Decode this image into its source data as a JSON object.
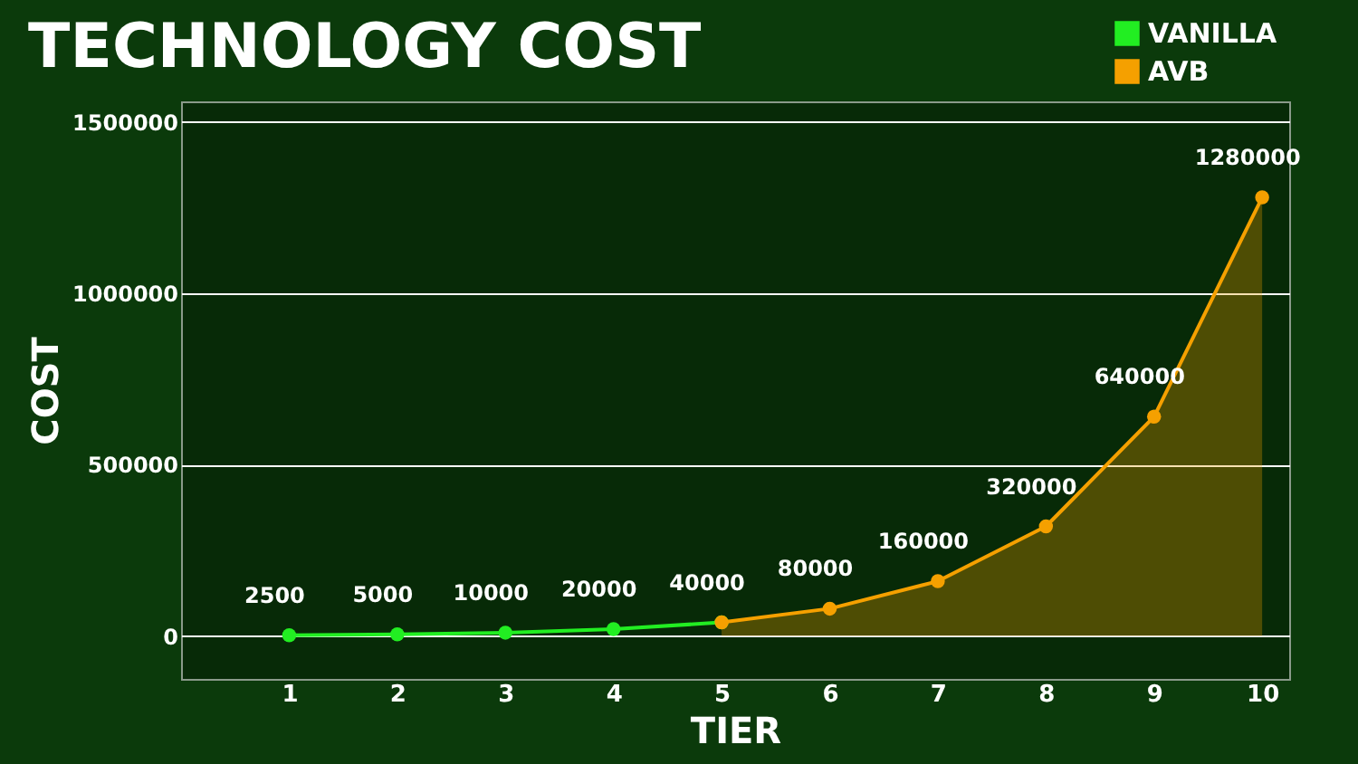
{
  "chart_data": {
    "type": "line",
    "title": "TECHNOLOGY COST",
    "xlabel": "TIER",
    "ylabel": "COST",
    "xlim": [
      0,
      10.25
    ],
    "xticks": [
      1,
      2,
      3,
      4,
      5,
      6,
      7,
      8,
      9,
      10
    ],
    "ylim": [
      -125000,
      1560000
    ],
    "yticks": [
      0,
      500000,
      1000000,
      1500000
    ],
    "series": [
      {
        "name": "VANILLA",
        "color": "#22ee22",
        "x": [
          1,
          2,
          3,
          4,
          5
        ],
        "values": [
          2500,
          5000,
          10000,
          20000,
          40000
        ],
        "value_labels": [
          "2500",
          "5000",
          "10000",
          "20000",
          "40000"
        ]
      },
      {
        "name": "AVB",
        "color": "#f5a000",
        "type": "area",
        "x": [
          5,
          6,
          7,
          8,
          9,
          10
        ],
        "values": [
          40000,
          80000,
          160000,
          320000,
          640000,
          1280000
        ],
        "value_labels": [
          null,
          "80000",
          "160000",
          "320000",
          "640000",
          "1280000"
        ]
      }
    ],
    "grid": "y",
    "legend": "top right",
    "marker": "circle",
    "line_style": "solid"
  }
}
